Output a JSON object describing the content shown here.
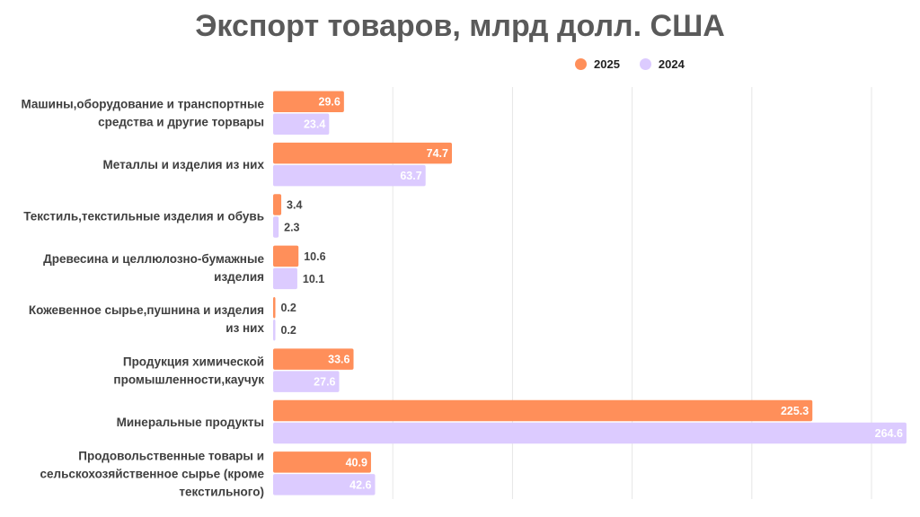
{
  "chart_data": {
    "type": "bar",
    "orientation": "horizontal",
    "title": "Экспорт товаров, млрд долл. США",
    "categories": [
      [
        "Машины,оборудование и транспортные",
        "средства и другие торвары"
      ],
      [
        "Металлы и изделия из них"
      ],
      [
        "Текстиль,текстильные изделия и обувь"
      ],
      [
        "Древесина и целлюлозно-бумажные",
        "изделия"
      ],
      [
        "Кожевенное сырье,пушнина и изделия",
        "из них"
      ],
      [
        "Продукция химической",
        "промышленности,каучук"
      ],
      [
        "Минеральные продукты"
      ],
      [
        "Продовольственные товары и",
        "сельскохозяйственное сырье (кроме",
        "текстильного)"
      ]
    ],
    "series": [
      {
        "name": "2025",
        "color": "#ff8f5a",
        "values": [
          29.6,
          74.7,
          3.4,
          10.6,
          0.2,
          33.6,
          225.3,
          40.9
        ]
      },
      {
        "name": "2024",
        "color": "#dccbff",
        "values": [
          23.4,
          63.7,
          2.3,
          10.1,
          0.2,
          27.6,
          264.6,
          42.6
        ]
      }
    ],
    "xlim": [
      0,
      265
    ],
    "grid": true,
    "legend_position": "top-right"
  }
}
